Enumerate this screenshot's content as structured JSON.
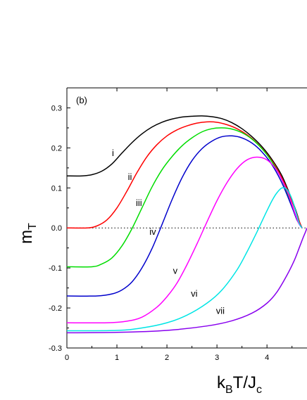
{
  "chart_data": {
    "type": "line",
    "panel_label": "(b)",
    "xlabel": {
      "main": "k",
      "sub1": "B",
      "mid": "T/J",
      "sub2": "c"
    },
    "ylabel": {
      "main": "m",
      "sub": "T"
    },
    "xlim": [
      0,
      4.8
    ],
    "ylim": [
      -0.3,
      0.35
    ],
    "xticks": [
      0,
      1,
      2,
      3,
      4
    ],
    "yticks": [
      -0.3,
      -0.2,
      -0.1,
      0.0,
      0.1,
      0.2,
      0.3
    ],
    "ytick_labels": [
      "-0.3",
      "-0.2",
      "-0.1",
      "0.0",
      "0.1",
      "0.2",
      "0.3"
    ],
    "grid": false,
    "zero_reference_line": {
      "y": 0.0,
      "style": "dotted"
    },
    "series": [
      {
        "name": "i",
        "color": "#000000",
        "label_at": [
          0.9,
          0.18
        ],
        "x": [
          0,
          0.3,
          0.5,
          0.7,
          0.9,
          1.1,
          1.3,
          1.5,
          1.7,
          1.9,
          2.1,
          2.3,
          2.5,
          2.7,
          2.9,
          3.1,
          3.3,
          3.5,
          3.7,
          3.9,
          4.1,
          4.3,
          4.5,
          4.6,
          4.65,
          4.68,
          4.7
        ],
        "y": [
          0.13,
          0.13,
          0.133,
          0.142,
          0.16,
          0.187,
          0.213,
          0.235,
          0.252,
          0.264,
          0.272,
          0.277,
          0.279,
          0.28,
          0.278,
          0.273,
          0.263,
          0.248,
          0.228,
          0.203,
          0.171,
          0.13,
          0.07,
          0.035,
          0.015,
          0.005,
          0.0
        ]
      },
      {
        "name": "ii",
        "color": "#ff0000",
        "label_at": [
          1.22,
          0.12
        ],
        "x": [
          0,
          0.4,
          0.6,
          0.8,
          1.0,
          1.2,
          1.4,
          1.6,
          1.8,
          2.0,
          2.2,
          2.4,
          2.6,
          2.8,
          3.0,
          3.2,
          3.4,
          3.6,
          3.8,
          4.0,
          4.2,
          4.4,
          4.55,
          4.65,
          4.7
        ],
        "y": [
          0.0,
          0.0,
          0.005,
          0.02,
          0.05,
          0.092,
          0.138,
          0.178,
          0.208,
          0.23,
          0.245,
          0.255,
          0.262,
          0.265,
          0.264,
          0.258,
          0.248,
          0.233,
          0.212,
          0.184,
          0.148,
          0.098,
          0.05,
          0.015,
          0.0
        ]
      },
      {
        "name": "iii",
        "color": "#00dd00",
        "label_at": [
          1.38,
          0.055
        ],
        "x": [
          0,
          0.5,
          0.7,
          0.9,
          1.1,
          1.3,
          1.5,
          1.7,
          1.9,
          2.1,
          2.3,
          2.5,
          2.7,
          2.9,
          3.1,
          3.3,
          3.5,
          3.7,
          3.9,
          4.1,
          4.3,
          4.5,
          4.6,
          4.7
        ],
        "y": [
          -0.097,
          -0.097,
          -0.09,
          -0.075,
          -0.045,
          -0.002,
          0.05,
          0.102,
          0.145,
          0.178,
          0.205,
          0.225,
          0.24,
          0.248,
          0.25,
          0.247,
          0.238,
          0.222,
          0.198,
          0.165,
          0.12,
          0.055,
          0.02,
          0.0
        ]
      },
      {
        "name": "iv",
        "color": "#0000cc",
        "label_at": [
          1.65,
          -0.017
        ],
        "x": [
          0,
          0.6,
          0.9,
          1.1,
          1.3,
          1.5,
          1.7,
          1.9,
          2.1,
          2.3,
          2.5,
          2.7,
          2.9,
          3.1,
          3.3,
          3.5,
          3.7,
          3.9,
          4.1,
          4.3,
          4.5,
          4.6,
          4.7
        ],
        "y": [
          -0.17,
          -0.17,
          -0.165,
          -0.155,
          -0.135,
          -0.1,
          -0.052,
          0.008,
          0.07,
          0.125,
          0.168,
          0.198,
          0.217,
          0.228,
          0.23,
          0.225,
          0.212,
          0.19,
          0.158,
          0.112,
          0.052,
          0.02,
          0.0
        ]
      },
      {
        "name": "v",
        "color": "#ff00ff",
        "label_at": [
          2.12,
          -0.115
        ],
        "x": [
          0,
          0.8,
          1.2,
          1.5,
          1.8,
          2.0,
          2.2,
          2.4,
          2.6,
          2.8,
          3.0,
          3.2,
          3.4,
          3.6,
          3.8,
          4.0,
          4.2,
          4.4,
          4.5,
          4.6,
          4.65,
          4.7
        ],
        "y": [
          -0.237,
          -0.237,
          -0.233,
          -0.223,
          -0.198,
          -0.172,
          -0.138,
          -0.092,
          -0.04,
          0.015,
          0.068,
          0.113,
          0.148,
          0.17,
          0.177,
          0.17,
          0.143,
          0.093,
          0.058,
          0.022,
          0.008,
          0.0
        ]
      },
      {
        "name": "vi",
        "color": "#00e5e5",
        "label_at": [
          2.48,
          -0.172
        ],
        "x": [
          0,
          1.0,
          1.5,
          2.0,
          2.4,
          2.8,
          3.1,
          3.4,
          3.6,
          3.8,
          3.95,
          4.1,
          4.2,
          4.3,
          4.4,
          4.5,
          4.6,
          4.65,
          4.7
        ],
        "y": [
          -0.257,
          -0.256,
          -0.25,
          -0.237,
          -0.218,
          -0.188,
          -0.155,
          -0.105,
          -0.06,
          -0.01,
          0.03,
          0.068,
          0.088,
          0.1,
          0.096,
          0.072,
          0.03,
          0.01,
          0.0
        ]
      },
      {
        "name": "vii",
        "color": "#8800ee",
        "label_at": [
          2.98,
          -0.215
        ],
        "x": [
          0,
          1.0,
          2.0,
          2.8,
          3.3,
          3.7,
          4.0,
          4.2,
          4.4,
          4.55,
          4.65,
          4.72,
          4.77,
          4.8
        ],
        "y": [
          -0.262,
          -0.261,
          -0.256,
          -0.245,
          -0.232,
          -0.213,
          -0.188,
          -0.16,
          -0.118,
          -0.08,
          -0.048,
          -0.025,
          -0.01,
          0.0
        ]
      }
    ]
  }
}
